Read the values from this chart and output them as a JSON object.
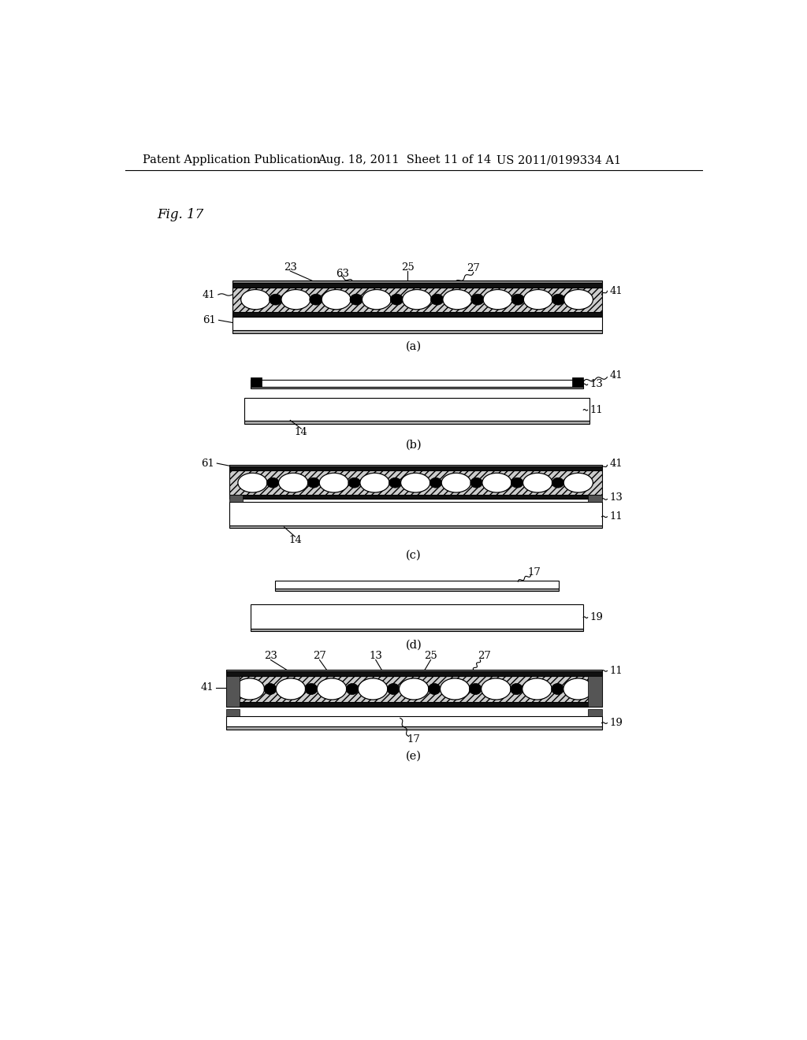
{
  "bg_color": "#ffffff",
  "header_left": "Patent Application Publication",
  "header_mid": "Aug. 18, 2011  Sheet 11 of 14",
  "header_right": "US 2011/0199334 A1",
  "fig_label": "Fig. 17"
}
